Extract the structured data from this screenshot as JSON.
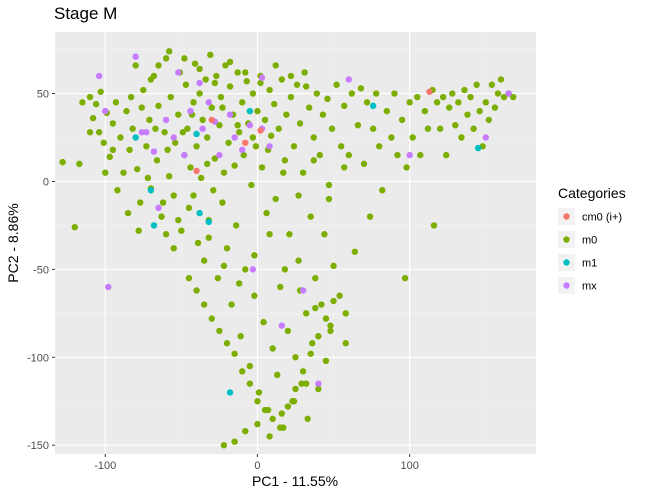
{
  "chart_data": {
    "type": "scatter",
    "title": "Stage M",
    "xlabel": "PC1 - 11.55%",
    "ylabel": "PC2 - 8.86%",
    "xlim": [
      -133,
      183
    ],
    "ylim": [
      -155,
      85
    ],
    "xticks": [
      -100,
      0,
      100
    ],
    "yticks": [
      -150,
      -100,
      -50,
      0,
      50
    ],
    "grid": true,
    "legend_title": "Categories",
    "legend_position": "right",
    "series": [
      {
        "name": "cm0 (i+)",
        "color": "#F8766D",
        "points": [
          [
            113,
            51
          ],
          [
            2,
            29
          ],
          [
            -30,
            35
          ],
          [
            -8,
            22
          ],
          [
            -40,
            6
          ]
        ]
      },
      {
        "name": "m0",
        "color": "#7CAE00",
        "points": [
          [
            -128,
            11
          ],
          [
            -117,
            10
          ],
          [
            -110,
            48
          ],
          [
            -108,
            36
          ],
          [
            -106,
            44
          ],
          [
            -104,
            28
          ],
          [
            -103,
            51
          ],
          [
            -101,
            22
          ],
          [
            -99,
            39
          ],
          [
            -97,
            14
          ],
          [
            -95,
            33
          ],
          [
            -93,
            45
          ],
          [
            -90,
            25
          ],
          [
            -88,
            5
          ],
          [
            -86,
            40
          ],
          [
            -84,
            18
          ],
          [
            -82,
            30
          ],
          [
            -80,
            66
          ],
          [
            -79,
            7
          ],
          [
            -77,
            -12
          ],
          [
            -75,
            52
          ],
          [
            -73,
            20
          ],
          [
            -71,
            35
          ],
          [
            -70,
            -4
          ],
          [
            -68,
            60
          ],
          [
            -66,
            12
          ],
          [
            -65,
            43
          ],
          [
            -63,
            -20
          ],
          [
            -61,
            28
          ],
          [
            -60,
            70
          ],
          [
            -58,
            3
          ],
          [
            -57,
            48
          ],
          [
            -55,
            -8
          ],
          [
            -54,
            22
          ],
          [
            -52,
            38
          ],
          [
            -51,
            62
          ],
          [
            -50,
            -28
          ],
          [
            -48,
            15
          ],
          [
            -47,
            55
          ],
          [
            -46,
            30
          ],
          [
            -45,
            -15
          ],
          [
            -44,
            8
          ],
          [
            -42,
            45
          ],
          [
            -41,
            67
          ],
          [
            -40,
            20
          ],
          [
            -39,
            -35
          ],
          [
            -38,
            50
          ],
          [
            -37,
            2
          ],
          [
            -36,
            35
          ],
          [
            -35,
            -45
          ],
          [
            -34,
            58
          ],
          [
            -33,
            25
          ],
          [
            -32,
            -22
          ],
          [
            -31,
            72
          ],
          [
            -30,
            42
          ],
          [
            -29,
            -5
          ],
          [
            -28,
            13
          ],
          [
            -27,
            60
          ],
          [
            -26,
            -55
          ],
          [
            -25,
            32
          ],
          [
            -24,
            48
          ],
          [
            -23,
            -12
          ],
          [
            -22,
            5
          ],
          [
            -21,
            66
          ],
          [
            -20,
            -38
          ],
          [
            -19,
            22
          ],
          [
            -18,
            54
          ],
          [
            -17,
            -70
          ],
          [
            -16,
            38
          ],
          [
            -15,
            9
          ],
          [
            -14,
            -25
          ],
          [
            -13,
            62
          ],
          [
            -12,
            28
          ],
          [
            -11,
            -88
          ],
          [
            -10,
            45
          ],
          [
            -9,
            15
          ],
          [
            -8,
            -50
          ],
          [
            -7,
            57
          ],
          [
            -6,
            33
          ],
          [
            -5,
            -105
          ],
          [
            -4,
            -2
          ],
          [
            -3,
            50
          ],
          [
            -2,
            -65
          ],
          [
            -1,
            20
          ],
          [
            0,
            40
          ],
          [
            1,
            -120
          ],
          [
            2,
            60
          ],
          [
            3,
            8
          ],
          [
            4,
            -80
          ],
          [
            5,
            35
          ],
          [
            6,
            -18
          ],
          [
            7,
            -130
          ],
          [
            8,
            52
          ],
          [
            9,
            26
          ],
          [
            10,
            -95
          ],
          [
            11,
            44
          ],
          [
            12,
            -10
          ],
          [
            13,
            -110
          ],
          [
            14,
            30
          ],
          [
            15,
            -60
          ],
          [
            16,
            58
          ],
          [
            17,
            -140
          ],
          [
            18,
            12
          ],
          [
            19,
            38
          ],
          [
            20,
            -85
          ],
          [
            21,
            -30
          ],
          [
            22,
            48
          ],
          [
            23,
            -125
          ],
          [
            24,
            20
          ],
          [
            25,
            -100
          ],
          [
            26,
            55
          ],
          [
            27,
            -45
          ],
          [
            28,
            33
          ],
          [
            29,
            -115
          ],
          [
            30,
            5
          ],
          [
            31,
            62
          ],
          [
            32,
            -75
          ],
          [
            33,
            -135
          ],
          [
            34,
            42
          ],
          [
            35,
            -20
          ],
          [
            36,
            -92
          ],
          [
            37,
            25
          ],
          [
            38,
            -55
          ],
          [
            39,
            50
          ],
          [
            40,
            -118
          ],
          [
            41,
            15
          ],
          [
            42,
            -70
          ],
          [
            43,
            38
          ],
          [
            44,
            -30
          ],
          [
            45,
            -102
          ],
          [
            46,
            47
          ],
          [
            47,
            -10
          ],
          [
            48,
            -85
          ],
          [
            49,
            30
          ],
          [
            50,
            -48
          ],
          [
            52,
            55
          ],
          [
            54,
            -65
          ],
          [
            55,
            20
          ],
          [
            57,
            43
          ],
          [
            58,
            -75
          ],
          [
            60,
            15
          ],
          [
            62,
            50
          ],
          [
            64,
            -40
          ],
          [
            66,
            32
          ],
          [
            68,
            53
          ],
          [
            70,
            10
          ],
          [
            72,
            45
          ],
          [
            74,
            -20
          ],
          [
            76,
            30
          ],
          [
            78,
            50
          ],
          [
            80,
            20
          ],
          [
            82,
            -5
          ],
          [
            85,
            40
          ],
          [
            88,
            25
          ],
          [
            90,
            50
          ],
          [
            92,
            15
          ],
          [
            95,
            35
          ],
          [
            97,
            -55
          ],
          [
            98,
            8
          ],
          [
            100,
            45
          ],
          [
            102,
            25
          ],
          [
            105,
            48
          ],
          [
            107,
            15
          ],
          [
            110,
            40
          ],
          [
            112,
            30
          ],
          [
            115,
            52
          ],
          [
            116,
            -25
          ],
          [
            118,
            45
          ],
          [
            120,
            30
          ],
          [
            122,
            48
          ],
          [
            124,
            15
          ],
          [
            126,
            42
          ],
          [
            128,
            50
          ],
          [
            130,
            32
          ],
          [
            132,
            45
          ],
          [
            134,
            25
          ],
          [
            136,
            52
          ],
          [
            138,
            38
          ],
          [
            140,
            48
          ],
          [
            142,
            30
          ],
          [
            144,
            55
          ],
          [
            146,
            40
          ],
          [
            148,
            20
          ],
          [
            150,
            45
          ],
          [
            152,
            35
          ],
          [
            154,
            55
          ],
          [
            156,
            42
          ],
          [
            158,
            50
          ],
          [
            160,
            58
          ],
          [
            162,
            48
          ],
          [
            165,
            50
          ],
          [
            168,
            48
          ],
          [
            -60,
            -30
          ],
          [
            -55,
            -38
          ],
          [
            -45,
            -55
          ],
          [
            -40,
            -62
          ],
          [
            -35,
            -70
          ],
          [
            -30,
            -78
          ],
          [
            -25,
            -85
          ],
          [
            -20,
            -92
          ],
          [
            -15,
            -98
          ],
          [
            -10,
            -108
          ],
          [
            -5,
            -115
          ],
          [
            0,
            -125
          ],
          [
            5,
            -130
          ],
          [
            10,
            -135
          ],
          [
            15,
            -140
          ],
          [
            20,
            -128
          ],
          [
            25,
            -118
          ],
          [
            30,
            -108
          ],
          [
            35,
            -98
          ],
          [
            40,
            -88
          ],
          [
            45,
            -78
          ],
          [
            50,
            -68
          ],
          [
            -70,
            58
          ],
          [
            -65,
            66
          ],
          [
            -58,
            74
          ],
          [
            -48,
            70
          ],
          [
            -38,
            64
          ],
          [
            -28,
            56
          ],
          [
            -18,
            68
          ],
          [
            -8,
            62
          ],
          [
            2,
            56
          ],
          [
            12,
            66
          ],
          [
            22,
            60
          ],
          [
            32,
            54
          ],
          [
            -120,
            -26
          ],
          [
            -92,
            -5
          ],
          [
            -85,
            -18
          ],
          [
            -78,
            -28
          ],
          [
            -72,
            2
          ],
          [
            -62,
            -12
          ],
          [
            -52,
            -22
          ],
          [
            -42,
            -8
          ],
          [
            -32,
            -32
          ],
          [
            -22,
            -48
          ],
          [
            -12,
            -58
          ],
          [
            -2,
            -42
          ],
          [
            8,
            -30
          ],
          [
            18,
            -50
          ],
          [
            28,
            -62
          ],
          [
            38,
            -72
          ],
          [
            48,
            -82
          ],
          [
            58,
            -92
          ],
          [
            -115,
            45
          ],
          [
            -110,
            28
          ],
          [
            -100,
            5
          ],
          [
            -95,
            18
          ],
          [
            -83,
            48
          ],
          [
            -76,
            42
          ],
          [
            -67,
            30
          ],
          [
            -59,
            18
          ],
          [
            -49,
            28
          ],
          [
            -43,
            38
          ],
          [
            -33,
            10
          ],
          [
            -23,
            42
          ],
          [
            -13,
            32
          ],
          [
            -3,
            25
          ],
          [
            7,
            18
          ],
          [
            17,
            5
          ],
          [
            27,
            -8
          ],
          [
            37,
            12
          ],
          [
            47,
            -2
          ],
          [
            57,
            8
          ],
          [
            -22,
            -150
          ],
          [
            -15,
            -148
          ],
          [
            -8,
            -142
          ],
          [
            0,
            -138
          ],
          [
            8,
            -145
          ],
          [
            16,
            -132
          ],
          [
            24,
            -125
          ],
          [
            32,
            -115
          ]
        ]
      },
      {
        "name": "m1",
        "color": "#00BFC4",
        "points": [
          [
            -80,
            25
          ],
          [
            -70,
            -5
          ],
          [
            -68,
            -25
          ],
          [
            -38,
            -18
          ],
          [
            -32,
            -23
          ],
          [
            -40,
            27
          ],
          [
            -5,
            40
          ],
          [
            -18,
            -120
          ],
          [
            76,
            43
          ],
          [
            145,
            19
          ]
        ]
      },
      {
        "name": "mx",
        "color": "#C77CFF",
        "points": [
          [
            -104,
            60
          ],
          [
            -80,
            71
          ],
          [
            -100,
            40
          ],
          [
            -98,
            -60
          ],
          [
            -76,
            28
          ],
          [
            -73,
            28
          ],
          [
            -68,
            17
          ],
          [
            -60,
            35
          ],
          [
            -55,
            25
          ],
          [
            -52,
            62
          ],
          [
            -48,
            15
          ],
          [
            -44,
            40
          ],
          [
            -38,
            56
          ],
          [
            -36,
            30
          ],
          [
            -32,
            45
          ],
          [
            -28,
            34
          ],
          [
            -25,
            15
          ],
          [
            -18,
            38
          ],
          [
            -15,
            25
          ],
          [
            -10,
            18
          ],
          [
            -5,
            32
          ],
          [
            -3,
            -50
          ],
          [
            3,
            30
          ],
          [
            8,
            20
          ],
          [
            3,
            59
          ],
          [
            30,
            -62
          ],
          [
            16,
            -82
          ],
          [
            60,
            58
          ],
          [
            100,
            15
          ],
          [
            150,
            25
          ],
          [
            165,
            50
          ],
          [
            -65,
            -15
          ],
          [
            40,
            -115
          ]
        ]
      }
    ]
  }
}
